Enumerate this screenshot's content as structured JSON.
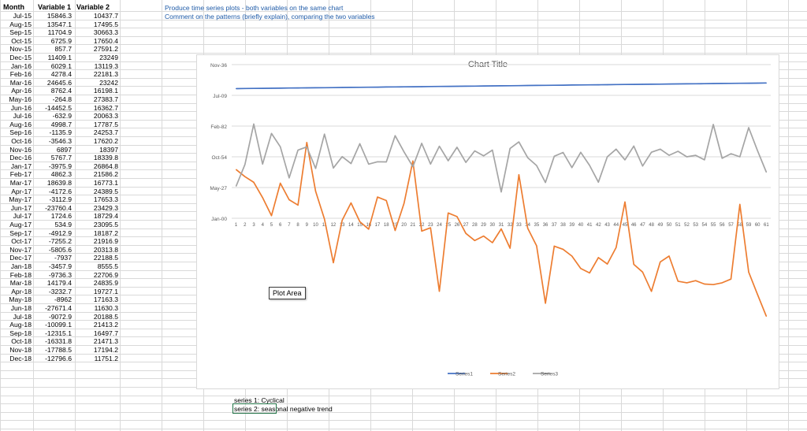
{
  "headers": {
    "month": "Month",
    "var1": "Variable 1",
    "var2": "Variable 2"
  },
  "rows": [
    [
      "Jul-15",
      "15846.3",
      "10437.7"
    ],
    [
      "Aug-15",
      "13547.1",
      "17495.5"
    ],
    [
      "Sep-15",
      "11704.9",
      "30663.3"
    ],
    [
      "Oct-15",
      "6725.9",
      "17650.4"
    ],
    [
      "Nov-15",
      "857.7",
      "27591.2"
    ],
    [
      "Dec-15",
      "11409.1",
      "23249"
    ],
    [
      "Jan-16",
      "6029.1",
      "13119.3"
    ],
    [
      "Feb-16",
      "4278.4",
      "22181.3"
    ],
    [
      "Mar-16",
      "24645.6",
      "23242"
    ],
    [
      "Apr-16",
      "8762.4",
      "16198.1"
    ],
    [
      "May-16",
      "-264.8",
      "27383.7"
    ],
    [
      "Jun-16",
      "-14452.5",
      "16362.7"
    ],
    [
      "Jul-16",
      "-632.9",
      "20063.3"
    ],
    [
      "Aug-16",
      "4998.7",
      "17787.5"
    ],
    [
      "Sep-16",
      "-1135.9",
      "24253.7"
    ],
    [
      "Oct-16",
      "-3546.3",
      "17620.2"
    ],
    [
      "Nov-16",
      "6897",
      "18397"
    ],
    [
      "Dec-16",
      "5767.7",
      "18339.8"
    ],
    [
      "Jan-17",
      "-3975.9",
      "26864.8"
    ],
    [
      "Feb-17",
      "4862.3",
      "21586.2"
    ],
    [
      "Mar-17",
      "18639.8",
      "16773.1"
    ],
    [
      "Apr-17",
      "-4172.6",
      "24389.5"
    ],
    [
      "May-17",
      "-3112.9",
      "17653.3"
    ],
    [
      "Jun-17",
      "-23760.4",
      "23429.3"
    ],
    [
      "Jul-17",
      "1724.6",
      "18729.4"
    ],
    [
      "Aug-17",
      "534.9",
      "23095.5"
    ],
    [
      "Sep-17",
      "-4912.9",
      "18187.2"
    ],
    [
      "Oct-17",
      "-7255.2",
      "21916.9"
    ],
    [
      "Nov-17",
      "-5805.6",
      "20313.8"
    ],
    [
      "Dec-17",
      "-7937",
      "22188.5"
    ],
    [
      "Jan-18",
      "-3457.9",
      "8555.5"
    ],
    [
      "Feb-18",
      "-9736.3",
      "22706.9"
    ],
    [
      "Mar-18",
      "14179.4",
      "24835.9"
    ],
    [
      "Apr-18",
      "-3232.7",
      "19727.1"
    ],
    [
      "May-18",
      "-8962",
      "17163.3"
    ],
    [
      "Jun-18",
      "-27671.4",
      "11630.3"
    ],
    [
      "Jul-18",
      "-9072.9",
      "20188.5"
    ],
    [
      "Aug-18",
      "-10099.1",
      "21413.2"
    ],
    [
      "Sep-18",
      "-12315.1",
      "16497.7"
    ],
    [
      "Oct-18",
      "-16331.8",
      "21471.3"
    ],
    [
      "Nov-18",
      "-17788.5",
      "17194.2"
    ],
    [
      "Dec-18",
      "-12796.6",
      "11751.2"
    ]
  ],
  "instructions": {
    "line1": "Produce time series plots - both variables on the same chart",
    "line2": "Comment on the patterns (briefly explain), comparing the two variables"
  },
  "comments": {
    "line1": "series 1: Cyclical",
    "line2": "series 2: seasonal negative trend"
  },
  "tooltip": "Plot Area",
  "chart_data": {
    "type": "line",
    "title": "Chart Title",
    "y_tick_labels": [
      "Jan-00",
      "May-27",
      "Oct-54",
      "Feb-82",
      "Jul-09",
      "Nov-36"
    ],
    "x_categories": [
      "1",
      "2",
      "3",
      "4",
      "5",
      "6",
      "7",
      "8",
      "9",
      "10",
      "11",
      "12",
      "13",
      "14",
      "15",
      "16",
      "17",
      "18",
      "19",
      "20",
      "21",
      "22",
      "23",
      "24",
      "25",
      "26",
      "27",
      "28",
      "29",
      "30",
      "31",
      "32",
      "33",
      "34",
      "35",
      "36",
      "37",
      "38",
      "39",
      "40",
      "41",
      "42",
      "43",
      "44",
      "45",
      "46",
      "47",
      "48",
      "49",
      "50",
      "51",
      "52",
      "53",
      "54",
      "55",
      "56",
      "57",
      "58",
      "59",
      "60",
      "61"
    ],
    "series": [
      {
        "name": "Series1",
        "color": "#4472c4",
        "values": [
          42191,
          42222,
          42251,
          42281,
          42312,
          42342,
          42373,
          42404,
          42433,
          42464,
          42494,
          42525,
          42555,
          42586,
          42617,
          42647,
          42678,
          42708,
          42739,
          42770,
          42798,
          42829,
          42859,
          42890,
          42920,
          42951,
          42982,
          43012,
          43043,
          43073,
          43104,
          43135,
          43163,
          43194,
          43224,
          43255,
          43285,
          43316,
          43347,
          43377,
          43408,
          43438,
          43469,
          43500,
          43528,
          43559,
          43589,
          43620,
          43650,
          43681,
          43712,
          43742,
          43773,
          43803,
          43834,
          43865,
          43893,
          43924,
          43954,
          43985,
          44015
        ]
      },
      {
        "name": "Series2",
        "color": "#ed7d31",
        "values": [
          15846.3,
          13547.1,
          11704.9,
          6725.9,
          857.7,
          11409.1,
          6029.1,
          4278.4,
          24645.6,
          8762.4,
          -264.8,
          -14452.5,
          -632.9,
          4998.7,
          -1135.9,
          -3546.3,
          6897,
          5767.7,
          -3975.9,
          4862.3,
          18639.8,
          -4172.6,
          -3112.9,
          -23760.4,
          1724.6,
          534.9,
          -4912.9,
          -7255.2,
          -5805.6,
          -7937,
          -3457.9,
          -9736.3,
          14179.4,
          -3232.7,
          -8962,
          -27671.4,
          -9072.9,
          -10099.1,
          -12315.1,
          -16331.8,
          -17788.5,
          -12796.6,
          -14900,
          -9500,
          5300,
          -15000,
          -17500,
          -23800,
          -14200,
          -12300,
          -20500,
          -21000,
          -20300,
          -21400,
          -21600,
          -21000,
          -19800,
          4500,
          -17500,
          -24800,
          -31900
        ]
      },
      {
        "name": "Series3",
        "color": "#a5a5a5",
        "values": [
          10437.7,
          17495.5,
          30663.3,
          17650.4,
          27591.2,
          23249,
          13119.3,
          22181.3,
          23242,
          16198.1,
          27383.7,
          16362.7,
          20063.3,
          17787.5,
          24253.7,
          17620.2,
          18397,
          18339.8,
          26864.8,
          21586.2,
          16773.1,
          24389.5,
          17653.3,
          23429.3,
          18729.4,
          23095.5,
          18187.2,
          21916.9,
          20313.8,
          22188.5,
          8555.5,
          22706.9,
          24835.9,
          19727.1,
          17163.3,
          11630.3,
          20188.5,
          21413.2,
          16497.7,
          21471.3,
          17194.2,
          11751.2,
          20000,
          22500,
          19000,
          23500,
          17000,
          21500,
          22500,
          20500,
          21800,
          20000,
          20500,
          19000,
          30500,
          19500,
          21000,
          20000,
          29500,
          22000,
          15000
        ]
      }
    ]
  }
}
